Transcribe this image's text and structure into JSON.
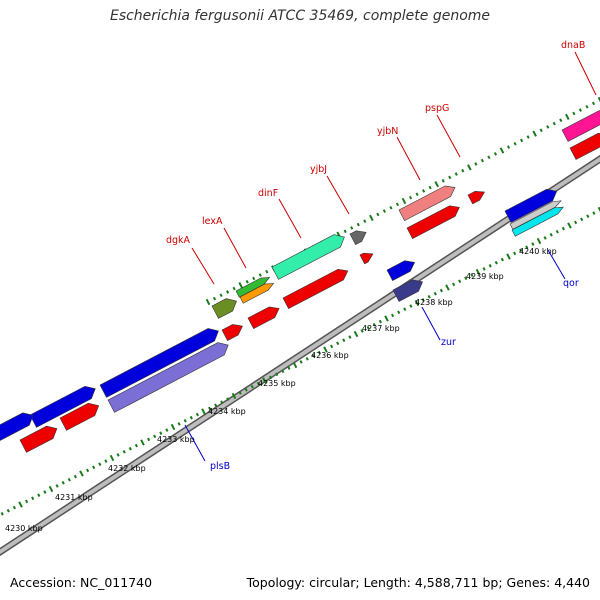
{
  "title": "Escherichia fergusonii ATCC 35469, complete genome",
  "footer": {
    "accession": "Accession: NC_011740",
    "summary": "Topology: circular; Length: 4,588,711 bp; Genes: 4,440"
  },
  "colors": {
    "backbone": "#8a8a8a",
    "ticks": "#1a7a1a",
    "label_forward": "#cc0000",
    "label_reverse": "#0000cc"
  },
  "ticks": [
    {
      "id": "t4230",
      "label": "4230 kbp"
    },
    {
      "id": "t4231",
      "label": "4231 kbp"
    },
    {
      "id": "t4232",
      "label": "4232 kbp"
    },
    {
      "id": "t4233",
      "label": "4233 kbp"
    },
    {
      "id": "t4234",
      "label": "4234 kbp"
    },
    {
      "id": "t4235",
      "label": "4235 kbp"
    },
    {
      "id": "t4236",
      "label": "4236 kbp"
    },
    {
      "id": "t4237",
      "label": "4237 kbp"
    },
    {
      "id": "t4238",
      "label": "4238 kbp"
    },
    {
      "id": "t4239",
      "label": "4239 kbp"
    },
    {
      "id": "t4240",
      "label": "4240 kbp"
    }
  ],
  "gene_labels": [
    {
      "id": "dgkA",
      "text": "dgkA",
      "strand": "forward"
    },
    {
      "id": "lexA",
      "text": "lexA",
      "strand": "forward"
    },
    {
      "id": "dinF",
      "text": "dinF",
      "strand": "forward"
    },
    {
      "id": "yjbJ",
      "text": "yjbJ",
      "strand": "forward"
    },
    {
      "id": "yjbN",
      "text": "yjbN",
      "strand": "forward"
    },
    {
      "id": "pspG",
      "text": "pspG",
      "strand": "forward"
    },
    {
      "id": "dnaB",
      "text": "dnaB",
      "strand": "forward"
    },
    {
      "id": "plsB",
      "text": "plsB",
      "strand": "reverse"
    },
    {
      "id": "zur",
      "text": "zur",
      "strand": "reverse"
    },
    {
      "id": "qor",
      "text": "qor",
      "strand": "reverse"
    }
  ],
  "features": [
    {
      "id": "f-left-blue-1",
      "color": "#0000dd"
    },
    {
      "id": "f-left-blue-2",
      "color": "#0000dd"
    },
    {
      "id": "f-left-red-1",
      "color": "#ee0000"
    },
    {
      "id": "f-left-red-2",
      "color": "#ee0000"
    },
    {
      "id": "f-plsB-blue",
      "color": "#0000dd"
    },
    {
      "id": "f-plsB-purple",
      "color": "#7b6fd6"
    },
    {
      "id": "f-dgkA",
      "color": "#6b8e23"
    },
    {
      "id": "f-lexA-green",
      "color": "#33bb33"
    },
    {
      "id": "f-lexA-orange",
      "color": "#ff9900"
    },
    {
      "id": "f-dinF",
      "color": "#33eeaa"
    },
    {
      "id": "f-yjbJ",
      "color": "#666666"
    },
    {
      "id": "f-red-a",
      "color": "#ee0000"
    },
    {
      "id": "f-red-b",
      "color": "#ee0000"
    },
    {
      "id": "f-red-c",
      "color": "#ee0000"
    },
    {
      "id": "f-red-d",
      "color": "#ee0000"
    },
    {
      "id": "f-zur-blue",
      "color": "#0000dd"
    },
    {
      "id": "f-zur-navy",
      "color": "#3a3a8a"
    },
    {
      "id": "f-yjbN",
      "color": "#f08080"
    },
    {
      "id": "f-red-e",
      "color": "#ee0000"
    },
    {
      "id": "f-red-f",
      "color": "#ee0000"
    },
    {
      "id": "f-qor-blue",
      "color": "#0000dd"
    },
    {
      "id": "f-qor-grey",
      "color": "#cccccc"
    },
    {
      "id": "f-qor-cyan",
      "color": "#00e5ee"
    },
    {
      "id": "f-dnaB-pink",
      "color": "#ff1493"
    },
    {
      "id": "f-dnaB-red",
      "color": "#ee0000"
    }
  ]
}
